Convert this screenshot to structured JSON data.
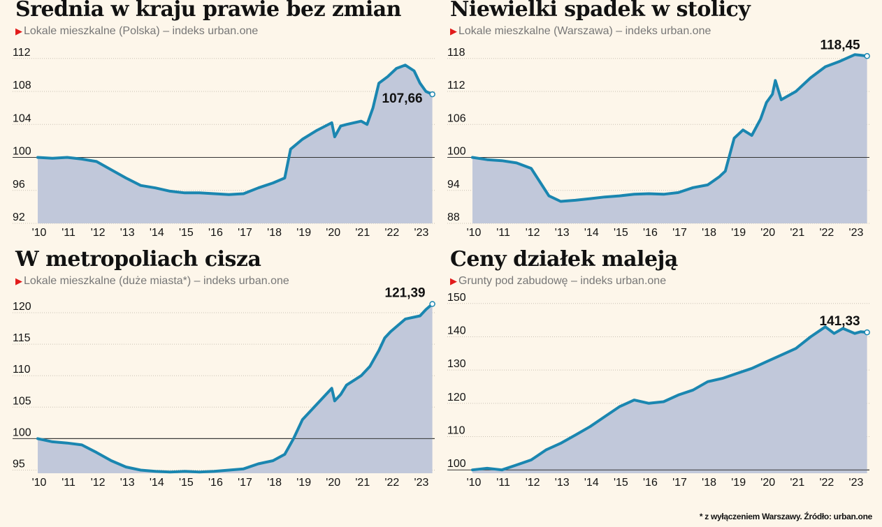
{
  "chart_data": [
    {
      "type": "area",
      "title": "Średnia w kraju prawie bez zmian",
      "subtitle": "Lokale mieszkalne (Polska) – indeks urban.one",
      "xlabel": "",
      "ylabel": "",
      "x_ticks": [
        "'10",
        "'11",
        "'12",
        "'13",
        "'14",
        "'15",
        "'16",
        "'17",
        "'18",
        "'19",
        "'20",
        "'21",
        "'22",
        "'23"
      ],
      "x_range": [
        2010,
        2023.5
      ],
      "y_ticks": [
        92,
        96,
        100,
        104,
        108,
        112
      ],
      "ylim": [
        92,
        113
      ],
      "reference_line": 100,
      "last_label": "107,66",
      "x": [
        2010,
        2010.5,
        2011,
        2011.5,
        2012,
        2012.5,
        2013,
        2013.5,
        2014,
        2014.5,
        2015,
        2015.5,
        2016,
        2016.5,
        2017,
        2017.5,
        2018,
        2018.4,
        2018.6,
        2019,
        2019.5,
        2020,
        2020.1,
        2020.3,
        2020.5,
        2021,
        2021.2,
        2021.4,
        2021.6,
        2021.9,
        2022.2,
        2022.5,
        2022.8,
        2023,
        2023.2,
        2023.42
      ],
      "values": [
        100,
        99.9,
        100,
        99.8,
        99.5,
        98.5,
        97.5,
        96.6,
        96.3,
        95.9,
        95.7,
        95.7,
        95.6,
        95.5,
        95.6,
        96.3,
        96.9,
        97.5,
        101.0,
        102.2,
        103.3,
        104.2,
        102.5,
        103.8,
        104.0,
        104.4,
        104.0,
        106.0,
        109.0,
        109.8,
        110.8,
        111.2,
        110.5,
        109.0,
        108.0,
        107.66
      ],
      "grid": true,
      "legend": "none"
    },
    {
      "type": "area",
      "title": "Niewielki spadek w stolicy",
      "subtitle": "Lokale mieszkalne (Warszawa) – indeks urban.one",
      "xlabel": "",
      "ylabel": "",
      "x_ticks": [
        "'10",
        "'11",
        "'12",
        "'13",
        "'14",
        "'15",
        "'16",
        "'17",
        "'18",
        "'19",
        "'20",
        "'21",
        "'22",
        "'23"
      ],
      "x_range": [
        2010,
        2023.5
      ],
      "y_ticks": [
        88,
        94,
        100,
        106,
        112,
        118
      ],
      "ylim": [
        88,
        119.5
      ],
      "reference_line": 100,
      "last_label": "118,45",
      "x": [
        2010,
        2010.5,
        2011,
        2011.5,
        2012,
        2012.3,
        2012.6,
        2013,
        2013.5,
        2014,
        2014.5,
        2015,
        2015.5,
        2016,
        2016.5,
        2017,
        2017.5,
        2018,
        2018.4,
        2018.6,
        2018.9,
        2019.2,
        2019.5,
        2019.8,
        2020,
        2020.2,
        2020.3,
        2020.5,
        2021,
        2021.5,
        2022,
        2022.5,
        2023,
        2023.2,
        2023.42
      ],
      "values": [
        100,
        99.6,
        99.4,
        99.0,
        98.0,
        95.5,
        93.0,
        92.0,
        92.2,
        92.5,
        92.8,
        93.0,
        93.3,
        93.4,
        93.3,
        93.6,
        94.5,
        95.0,
        96.5,
        97.5,
        103.5,
        105.0,
        104.0,
        107.0,
        110.0,
        111.5,
        114.0,
        110.5,
        112.0,
        114.5,
        116.5,
        117.5,
        118.7,
        118.6,
        118.45
      ],
      "grid": true,
      "legend": "none"
    },
    {
      "type": "area",
      "title": "W metropoliach cisza",
      "subtitle": "Lokale mieszkalne (duże miasta*) – indeks urban.one",
      "xlabel": "",
      "ylabel": "",
      "x_ticks": [
        "'10",
        "'11",
        "'12",
        "'13",
        "'14",
        "'15",
        "'16",
        "'17",
        "'18",
        "'19",
        "'20",
        "'21",
        "'22",
        "'23"
      ],
      "x_range": [
        2010,
        2023.5
      ],
      "y_ticks": [
        95,
        100,
        105,
        110,
        115,
        120
      ],
      "ylim": [
        94.5,
        122
      ],
      "reference_line": 100,
      "last_label": "121,39",
      "x": [
        2010,
        2010.5,
        2011,
        2011.5,
        2012,
        2012.5,
        2013,
        2013.5,
        2014,
        2014.5,
        2015,
        2015.5,
        2016,
        2016.5,
        2017,
        2017.5,
        2018,
        2018.4,
        2018.7,
        2019,
        2019.5,
        2020,
        2020.1,
        2020.3,
        2020.5,
        2021,
        2021.3,
        2021.6,
        2021.8,
        2022,
        2022.5,
        2023,
        2023.2,
        2023.42
      ],
      "values": [
        100,
        99.5,
        99.3,
        99.0,
        97.8,
        96.5,
        95.5,
        95.0,
        94.8,
        94.7,
        94.8,
        94.7,
        94.8,
        95.0,
        95.2,
        96.0,
        96.5,
        97.5,
        100.0,
        103.0,
        105.5,
        108.0,
        106.0,
        107.0,
        108.5,
        110.0,
        111.5,
        114.0,
        116.0,
        117.0,
        119.0,
        119.5,
        120.5,
        121.39
      ],
      "grid": true,
      "legend": "none"
    },
    {
      "type": "area",
      "title": "Ceny działek maleją",
      "subtitle": "Grunty pod zabudowę – indeks urban.one",
      "xlabel": "",
      "ylabel": "",
      "x_ticks": [
        "'10",
        "'11",
        "'12",
        "'13",
        "'14",
        "'15",
        "'16",
        "'17",
        "'18",
        "'19",
        "'20",
        "'21",
        "'22",
        "'23"
      ],
      "x_range": [
        2010,
        2023.5
      ],
      "y_ticks": [
        100,
        110,
        120,
        130,
        140,
        150
      ],
      "ylim": [
        99,
        151
      ],
      "reference_line": 100,
      "last_label": "141,33",
      "x": [
        2010,
        2010.5,
        2011,
        2011.5,
        2012,
        2012.5,
        2013,
        2013.5,
        2014,
        2014.5,
        2015,
        2015.5,
        2016,
        2016.5,
        2017,
        2017.5,
        2018,
        2018.5,
        2019,
        2019.5,
        2020,
        2020.5,
        2021,
        2021.5,
        2022,
        2022.3,
        2022.6,
        2023,
        2023.2,
        2023.42
      ],
      "values": [
        100,
        100.5,
        100.0,
        101.5,
        103.0,
        106.0,
        108.0,
        110.5,
        113.0,
        116.0,
        119.0,
        121.0,
        120.0,
        120.5,
        122.5,
        124.0,
        126.5,
        127.5,
        129.0,
        130.5,
        132.5,
        134.5,
        136.5,
        140.0,
        143.0,
        141.0,
        142.5,
        141.0,
        141.5,
        141.33
      ],
      "grid": true,
      "legend": "none"
    }
  ],
  "colors": {
    "line": "#1a86b0",
    "fill": "#c1c8da",
    "title": "#111111",
    "subtitle": "#777777",
    "marker": "#e21b1b",
    "background": "#fdf6ea"
  },
  "footnote": "* z wyłączeniem Warszawy. Źródło: urban.one"
}
